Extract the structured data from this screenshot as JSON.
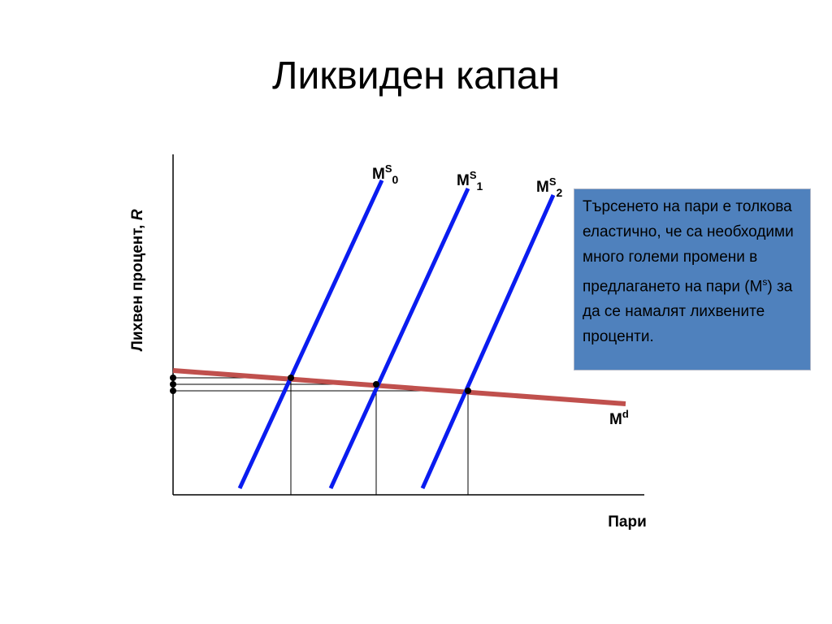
{
  "title": "Ликвиден капан",
  "y_axis_label": {
    "text": "Лихвен процент, ",
    "variable": "R"
  },
  "x_axis_label": "Пари",
  "curves": [
    {
      "main": "M",
      "sup": "S",
      "sub": "0"
    },
    {
      "main": "M",
      "sup": "S",
      "sub": "1"
    },
    {
      "main": "M",
      "sup": "S",
      "sub": "2"
    },
    {
      "main": "M",
      "sup": "d"
    }
  ],
  "note": {
    "before": "Търсенето на пари е толкова еластично, че са необходими много големи промени в предлагането на пари (M",
    "sup": "s",
    "after": ") за да се намалят лихвените проценти."
  }
}
